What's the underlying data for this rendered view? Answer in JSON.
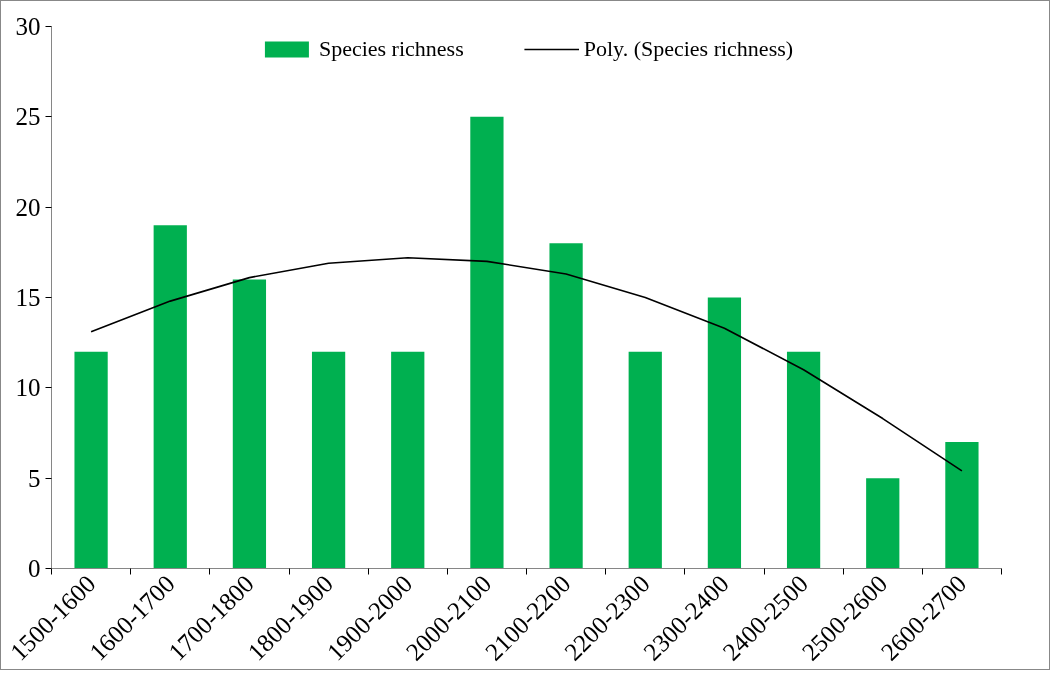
{
  "chart_data": {
    "type": "bar",
    "categories": [
      "1500-1600",
      "1600-1700",
      "1700-1800",
      "1800-1900",
      "1900-2000",
      "2000-2100",
      "2100-2200",
      "2200-2300",
      "2300-2400",
      "2400-2500",
      "2500-2600",
      "2600-2700"
    ],
    "series": [
      {
        "name": "Species richness",
        "color": "#00b050",
        "values": [
          12,
          19,
          16,
          12,
          12,
          25,
          18,
          12,
          15,
          12,
          5,
          7
        ]
      },
      {
        "name": "Poly. (Species richness)",
        "type": "line",
        "color": "#000000",
        "values": [
          13.1,
          14.8,
          16.1,
          16.9,
          17.2,
          17.0,
          16.3,
          15.0,
          13.3,
          11.0,
          8.3,
          5.4
        ]
      }
    ],
    "ylim": [
      0,
      30
    ],
    "yticks": [
      0,
      5,
      10,
      15,
      20,
      25,
      30
    ],
    "grid": false,
    "legend": "top",
    "marker": "none",
    "line_style": "solid"
  }
}
